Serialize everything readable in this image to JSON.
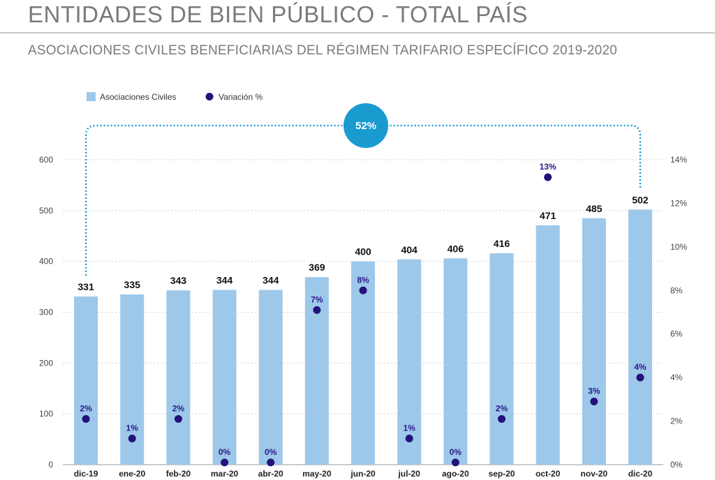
{
  "header": {
    "title": "ENTIDADES DE BIEN PÚBLICO - TOTAL PAÍS",
    "subtitle": "ASOCIACIONES CIVILES BENEFICIARIAS DEL RÉGIMEN TARIFARIO ESPECÍFICO 2019-2020"
  },
  "colors": {
    "bar": "#9dc8ea",
    "point": "#24127a",
    "point_label": "#2a1a8a",
    "badge": "#1a9bd0",
    "connector": "#1a9bd0",
    "grid": "#d0d0d0"
  },
  "chart_data": {
    "type": "bar",
    "title": "",
    "categories": [
      "dic-19",
      "ene-20",
      "feb-20",
      "mar-20",
      "abr-20",
      "may-20",
      "jun-20",
      "jul-20",
      "ago-20",
      "sep-20",
      "oct-20",
      "nov-20",
      "dic-20"
    ],
    "series": [
      {
        "name": "Asociaciones Civiles",
        "type": "bar",
        "axis": "left",
        "values": [
          331,
          335,
          343,
          344,
          344,
          369,
          400,
          404,
          406,
          416,
          471,
          485,
          502
        ],
        "labels": [
          "331",
          "335",
          "343",
          "344",
          "344",
          "369",
          "400",
          "404",
          "406",
          "416",
          "471",
          "485",
          "502"
        ]
      },
      {
        "name": "Variación %",
        "type": "scatter",
        "axis": "right",
        "values": [
          2.1,
          1.2,
          2.1,
          0.1,
          0.1,
          7.1,
          8.0,
          1.2,
          0.1,
          2.1,
          13.2,
          2.9,
          4.0
        ],
        "labels": [
          "2%",
          "1%",
          "2%",
          "0%",
          "0%",
          "7%",
          "8%",
          "1%",
          "0%",
          "2%",
          "13%",
          "3%",
          "4%"
        ]
      }
    ],
    "ylim_left": [
      0,
      600
    ],
    "yticks_left": [
      "0",
      "100",
      "200",
      "300",
      "400",
      "500",
      "600"
    ],
    "ylim_right": [
      0,
      14
    ],
    "yticks_right": [
      "0%",
      "2%",
      "4%",
      "6%",
      "8%",
      "10%",
      "12%",
      "14%"
    ],
    "grid": true,
    "legend": "top-left",
    "annotation": {
      "text": "52%",
      "from_category": "dic-19",
      "to_category": "dic-20"
    }
  }
}
